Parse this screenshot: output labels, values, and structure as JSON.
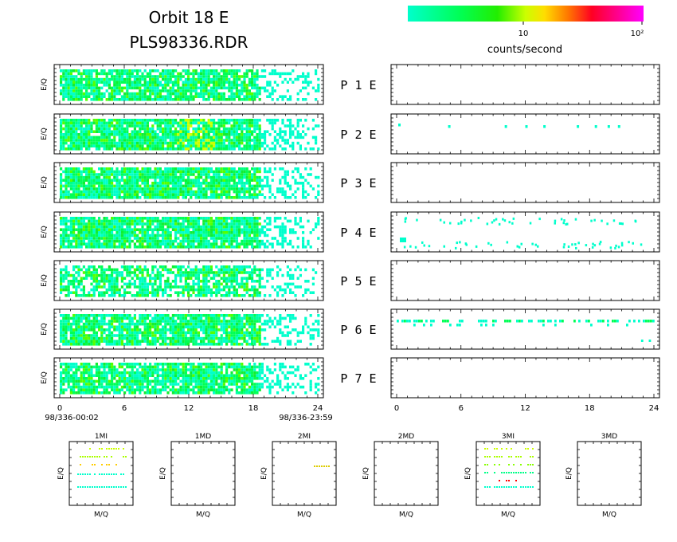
{
  "header": {
    "title_line1": "Orbit 18 E",
    "title_line2": "PLS98336.RDR"
  },
  "colorbar": {
    "colors": [
      "#00ffcc",
      "#00ff66",
      "#00ee00",
      "#aaff00",
      "#ffff00",
      "#ff9900",
      "#ff0000",
      "#ff00ff"
    ],
    "tick_10": "10",
    "tick_100": "10²",
    "label": "counts/second"
  },
  "chart_data": [
    {
      "type": "heatmap",
      "title": "",
      "ylabel": "E/Q",
      "xlabel": "",
      "xlim": [
        0,
        24
      ],
      "x_ticks": [
        "0",
        "6",
        "12",
        "18",
        "24"
      ],
      "x_start_label": "98/336-00:02",
      "x_end_label": "98/336-23:59",
      "panels": [
        {
          "name": "P 1 E",
          "density": "high 0-18h, fading after 18h",
          "side": "left"
        },
        {
          "name": "P 2 E",
          "density": "high, yellow-green peaks near 11-13h",
          "side": "left"
        },
        {
          "name": "P 3 E",
          "density": "high",
          "side": "left"
        },
        {
          "name": "P 4 E",
          "density": "high",
          "side": "left"
        },
        {
          "name": "P 5 E",
          "density": "medium",
          "side": "left"
        },
        {
          "name": "P 6 E",
          "density": "high",
          "side": "left"
        },
        {
          "name": "P 7 E",
          "density": "high",
          "side": "left"
        }
      ],
      "panel_labels": [
        "P 1 E",
        "P 2 E",
        "P 3 E",
        "P 4 E",
        "P 5 E",
        "P 6 E",
        "P 7 E"
      ]
    },
    {
      "type": "heatmap",
      "xlim": [
        0,
        24
      ],
      "x_ticks": [
        "0",
        "6",
        "12",
        "18",
        "24"
      ],
      "panels": [
        {
          "name": "P 1 E",
          "density": "empty"
        },
        {
          "name": "P 2 E",
          "density": "sparse points near 0.3, 10, 11, 13, 16, 18, 19, 20h"
        },
        {
          "name": "P 3 E",
          "density": "empty"
        },
        {
          "name": "P 4 E",
          "density": "sparse scattered points top and bottom rows"
        },
        {
          "name": "P 5 E",
          "density": "empty"
        },
        {
          "name": "P 6 E",
          "density": "dotted band across full day near top"
        },
        {
          "name": "P 7 E",
          "density": "empty"
        }
      ]
    },
    {
      "type": "scatter",
      "xlabel": "M/Q",
      "ylabel": "E/Q",
      "panels": [
        {
          "title": "1MI",
          "content": "several horizontal dotted rows, cyan and yellow"
        },
        {
          "title": "1MD",
          "content": "empty"
        },
        {
          "title": "2MI",
          "content": "a few yellow dots near upper right"
        },
        {
          "title": "2MD",
          "content": "empty"
        },
        {
          "title": "3MI",
          "content": "many horizontal dotted rows, cyan, green, yellow, red"
        },
        {
          "title": "3MD",
          "content": "empty"
        }
      ]
    }
  ],
  "labels": {
    "eq": "E/Q",
    "mq": "M/Q"
  }
}
